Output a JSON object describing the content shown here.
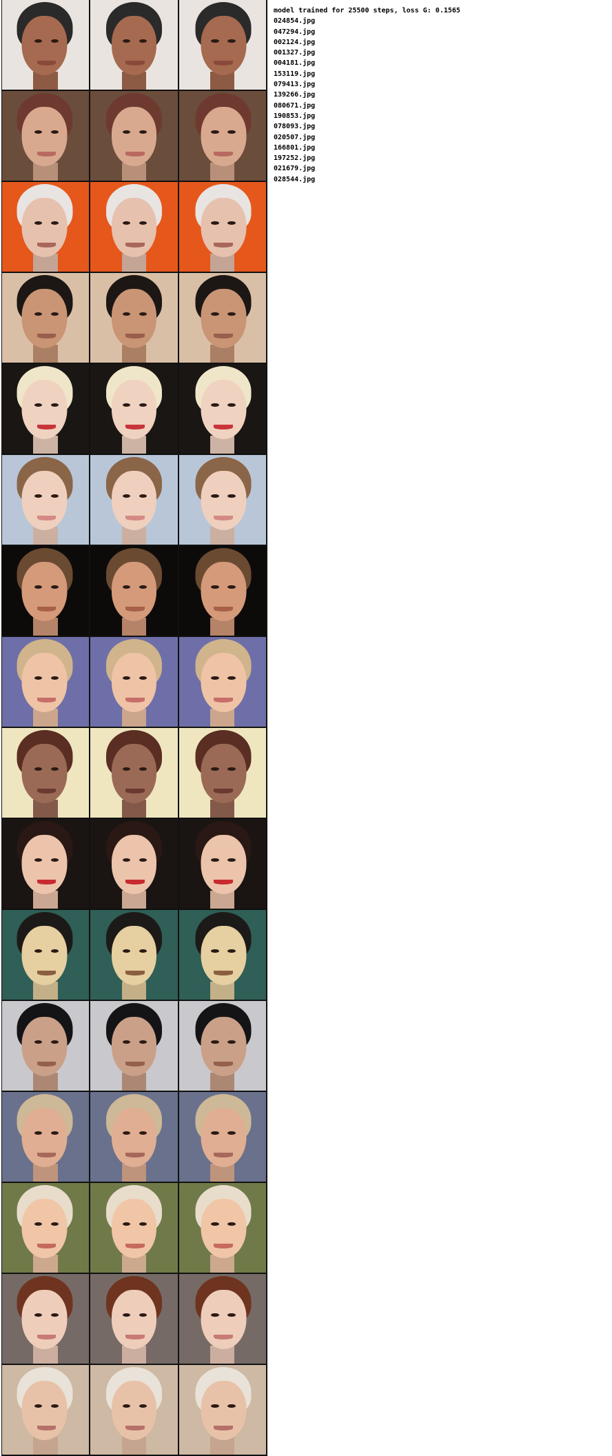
{
  "header": "model trained for 25500 steps, loss G: 0.1565",
  "files": [
    "024854.jpg",
    "047294.jpg",
    "002124.jpg",
    "001327.jpg",
    "004181.jpg",
    "153119.jpg",
    "079413.jpg",
    "139266.jpg",
    "080671.jpg",
    "190853.jpg",
    "078093.jpg",
    "020507.jpg",
    "166801.jpg",
    "197252.jpg",
    "021679.jpg",
    "028544.jpg"
  ],
  "rows": [
    {
      "bg": "#e9e4df",
      "hair": "#2a2a2a",
      "skin": "#a66a50",
      "lip": "#8a4a3a"
    },
    {
      "bg": "#6b4d3c",
      "hair": "#6e3a30",
      "skin": "#d9a98f",
      "lip": "#b86a60"
    },
    {
      "bg": "#e6571c",
      "hair": "#e8e4e1",
      "skin": "#e6c1ae",
      "lip": "#a9665a"
    },
    {
      "bg": "#d9bfa6",
      "hair": "#1c1714",
      "skin": "#c99575",
      "lip": "#9a5e4c"
    },
    {
      "bg": "#1a1614",
      "hair": "#efe6c9",
      "skin": "#f0d2c0",
      "lip": "#c8343a"
    },
    {
      "bg": "#b8c6d8",
      "hair": "#8a6548",
      "skin": "#efcfbd",
      "lip": "#d48a86"
    },
    {
      "bg": "#0d0b0a",
      "hair": "#6b4a32",
      "skin": "#d49a7a",
      "lip": "#a86048"
    },
    {
      "bg": "#6e6fa8",
      "hair": "#d0b48c",
      "skin": "#efc3a6",
      "lip": "#c86e68"
    },
    {
      "bg": "#efe6c0",
      "hair": "#5a2e22",
      "skin": "#9a6a56",
      "lip": "#6a3a30"
    },
    {
      "bg": "#1a1412",
      "hair": "#2a1814",
      "skin": "#ecc4ac",
      "lip": "#c82a30"
    },
    {
      "bg": "#2f5f56",
      "hair": "#1c1a18",
      "skin": "#e6cfa0",
      "lip": "#8a5e40"
    },
    {
      "bg": "#c9c8cc",
      "hair": "#141416",
      "skin": "#caa088",
      "lip": "#94604c"
    },
    {
      "bg": "#69718c",
      "hair": "#cdb897",
      "skin": "#e0ae92",
      "lip": "#a6685a"
    },
    {
      "bg": "#6f7a48",
      "hair": "#e8dccb",
      "skin": "#f0c6a6",
      "lip": "#c66a5e"
    },
    {
      "bg": "#766a66",
      "hair": "#6e3420",
      "skin": "#efcdbb",
      "lip": "#c87a74"
    },
    {
      "bg": "#cdb9a4",
      "hair": "#e9e2d8",
      "skin": "#e8c2a8",
      "lip": "#b6706a"
    }
  ]
}
